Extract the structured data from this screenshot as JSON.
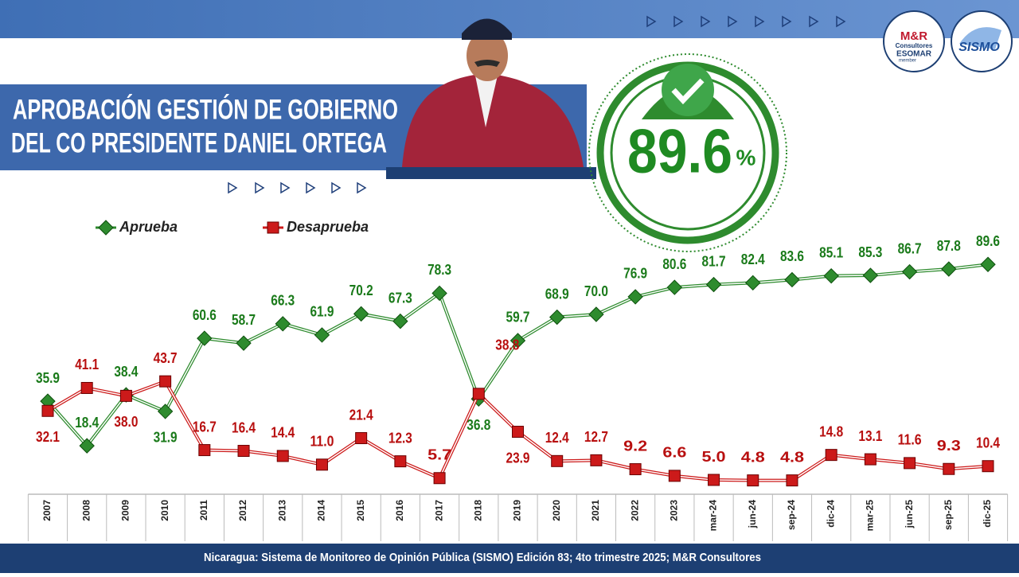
{
  "header": {
    "title_line1": "APROBACIÓN GESTIÓN DE GOBIERNO",
    "title_line2": "DEL CO PRESIDENTE DANIEL ORTEGA",
    "highlight": "89.6",
    "highlight_unit": "%",
    "logo1_line1": "M&R",
    "logo1_line2": "Consultores",
    "logo1_line3": "ESOMAR",
    "logo1_line4": "member",
    "logo2": "SISMO"
  },
  "chart_data": {
    "type": "line",
    "categories": [
      "2007",
      "2008",
      "2009",
      "2010",
      "2011",
      "2012",
      "2013",
      "2014",
      "2015",
      "2016",
      "2017",
      "2018",
      "2019",
      "2020",
      "2021",
      "2022",
      "2023",
      "mar-24",
      "jun-24",
      "sep-24",
      "dic-24",
      "mar-25",
      "jun-25",
      "sep-25",
      "dic-25"
    ],
    "ylim": [
      0,
      100
    ],
    "series": [
      {
        "name": "Aprueba",
        "color": "#2e8b2e",
        "values": [
          35.9,
          18.4,
          38.4,
          31.9,
          60.6,
          58.7,
          66.3,
          61.9,
          70.2,
          67.3,
          78.3,
          36.8,
          59.7,
          68.9,
          70.0,
          76.9,
          80.6,
          81.7,
          82.4,
          83.6,
          85.1,
          85.3,
          86.7,
          87.8,
          89.6
        ],
        "value_labels": [
          "35.9",
          "18.4",
          "38.4",
          "31.9",
          "60.6",
          "58.7",
          "66.3",
          "61.9",
          "70.2",
          "67.3",
          "78.3",
          "36.8",
          "59.7",
          "68.9",
          "70.0",
          "76.9",
          "80.6",
          "81.7",
          "82.4",
          "83.6",
          "85.1",
          "85.3",
          "86.7",
          "87.8",
          "89.6"
        ]
      },
      {
        "name": "Desaprueba",
        "color": "#cc1a1a",
        "values": [
          32.1,
          41.1,
          38.0,
          43.7,
          16.7,
          16.4,
          14.4,
          11.0,
          21.4,
          12.3,
          5.7,
          38.8,
          23.9,
          12.4,
          12.7,
          9.2,
          6.6,
          5.0,
          4.8,
          4.8,
          14.8,
          13.1,
          11.6,
          9.3,
          10.4
        ],
        "value_labels": [
          "32.1",
          "41.1",
          "38.0",
          "43.7",
          "16.7",
          "16.4",
          "14.4",
          "11.0",
          "21.4",
          "12.3",
          "5.7",
          "38.8",
          "23.9",
          "12.4",
          "12.7",
          "9.2",
          "6.6",
          "5.0",
          "4.8",
          "4.8",
          "14.8",
          "13.1",
          "11.6",
          "9.3",
          "10.4"
        ]
      }
    ],
    "footnote": "Nicaragua: Sistema de Monitoreo de Opinión Pública (SISMO) Edición 83; 4to trimestre 2025; M&R Consultores"
  }
}
